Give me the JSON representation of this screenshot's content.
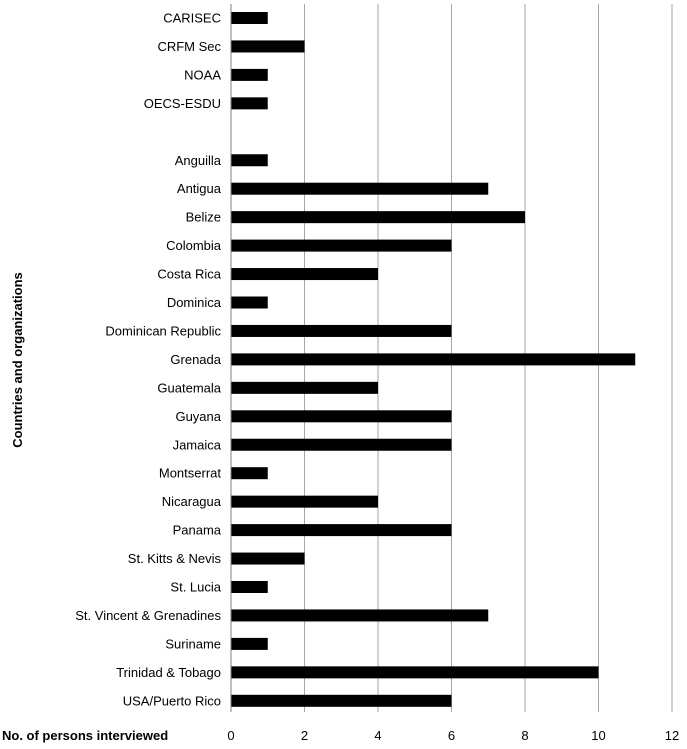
{
  "chart_data": {
    "type": "bar",
    "orientation": "horizontal",
    "xlabel": "No. of persons interviewed",
    "ylabel": "Countries and organizations",
    "xlim": [
      0,
      12
    ],
    "xticks": [
      0,
      2,
      4,
      6,
      8,
      10,
      12
    ],
    "grid": "vertical",
    "bar_color": "#000000",
    "categories": [
      "CARISEC",
      "CRFM Sec",
      "NOAA",
      "OECS-ESDU",
      "",
      "Anguilla",
      "Antigua",
      "Belize",
      "Colombia",
      "Costa Rica",
      "Dominica",
      "Dominican Republic",
      "Grenada",
      "Guatemala",
      "Guyana",
      "Jamaica",
      "Montserrat",
      "Nicaragua",
      "Panama",
      "St. Kitts & Nevis",
      "St. Lucia",
      "St. Vincent & Grenadines",
      "Suriname",
      "Trinidad & Tobago",
      "USA/Puerto Rico"
    ],
    "values": [
      1,
      2,
      1,
      1,
      null,
      1,
      7,
      8,
      6,
      4,
      1,
      6,
      11,
      4,
      6,
      6,
      1,
      4,
      6,
      2,
      1,
      7,
      1,
      10,
      6
    ]
  }
}
